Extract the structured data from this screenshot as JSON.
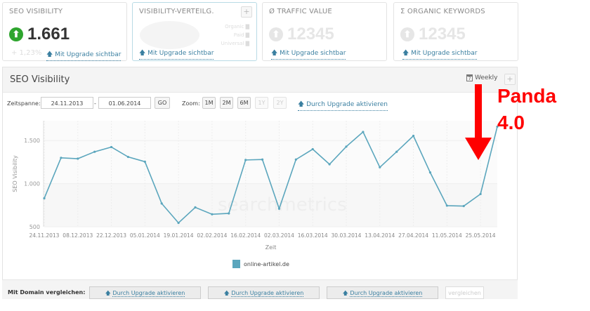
{
  "cards": [
    {
      "title": "SEO VISIBILITY",
      "value": "1.661",
      "change": "+ 1,23%",
      "link": "Mit Upgrade sichtbar",
      "icon": "arrow-up-circle-icon",
      "icon_color": "#2ea52e"
    },
    {
      "title": "VISIBILITY-VERTEILG.",
      "legend": [
        "Organic",
        "Paid",
        "Universal"
      ],
      "link": "Mit Upgrade sichtbar",
      "plus": "+"
    },
    {
      "title": "Ø TRAFFIC VALUE",
      "value": "12345",
      "link": "Mit Upgrade sichtbar"
    },
    {
      "title": "Σ ORGANIC KEYWORDS",
      "value": "12345",
      "link": "Mit Upgrade sichtbar"
    }
  ],
  "panel": {
    "title": "SEO Visibility",
    "interval": "Weekly",
    "plus": "+"
  },
  "toolbar": {
    "range_label": "Zeitspanne:",
    "from": "24.11.2013",
    "sep": "-",
    "to": "01.06.2014",
    "go": "GO",
    "zoom_label": "Zoom:",
    "zoom": [
      "1M",
      "2M",
      "6M",
      "1Y",
      "2Y"
    ],
    "upgrade": "Durch Upgrade aktivieren"
  },
  "chart_data": {
    "type": "line",
    "xlabel": "Zeit",
    "ylabel": "SEO Visibility",
    "ylim": [
      500,
      1730
    ],
    "yticks": [
      "500",
      "1.000",
      "1.500"
    ],
    "xticks": [
      "24.11.2013",
      "08.12.2013",
      "22.12.2013",
      "05.01.2014",
      "19.01.2014",
      "02.02.2014",
      "16.02.2014",
      "02.03.2014",
      "16.03.2014",
      "30.03.2014",
      "13.04.2014",
      "27.04.2014",
      "11.05.2014",
      "25.05.2014"
    ],
    "x": [
      "24.11.2013",
      "01.12.2013",
      "08.12.2013",
      "15.12.2013",
      "22.12.2013",
      "29.12.2013",
      "05.01.2014",
      "12.01.2014",
      "19.01.2014",
      "26.01.2014",
      "02.02.2014",
      "09.02.2014",
      "16.02.2014",
      "23.02.2014",
      "02.03.2014",
      "09.03.2014",
      "16.03.2014",
      "23.03.2014",
      "30.03.2014",
      "06.04.2014",
      "13.04.2014",
      "20.04.2014",
      "27.04.2014",
      "04.05.2014",
      "11.05.2014",
      "18.05.2014",
      "25.05.2014",
      "01.06.2014"
    ],
    "series": [
      {
        "name": "online-artikel.de",
        "color": "#5ba6bd",
        "values": [
          830,
          1300,
          1290,
          1370,
          1425,
          1310,
          1255,
          770,
          545,
          725,
          645,
          655,
          1275,
          1280,
          710,
          1280,
          1400,
          1225,
          1430,
          1600,
          1190,
          1370,
          1555,
          1130,
          745,
          740,
          880,
          1661
        ]
      }
    ],
    "grid": true,
    "legend": "bottom",
    "watermark": "searchmetrics"
  },
  "compare": {
    "label": "Mit Domain vergleichen:",
    "slots": [
      "Durch Upgrade aktivieren",
      "Durch Upgrade aktivieren",
      "Durch Upgrade aktivieren"
    ],
    "button": "vergleichen"
  },
  "annotation": {
    "line1": "Panda",
    "line2": "4.0",
    "color": "#ff0000"
  }
}
